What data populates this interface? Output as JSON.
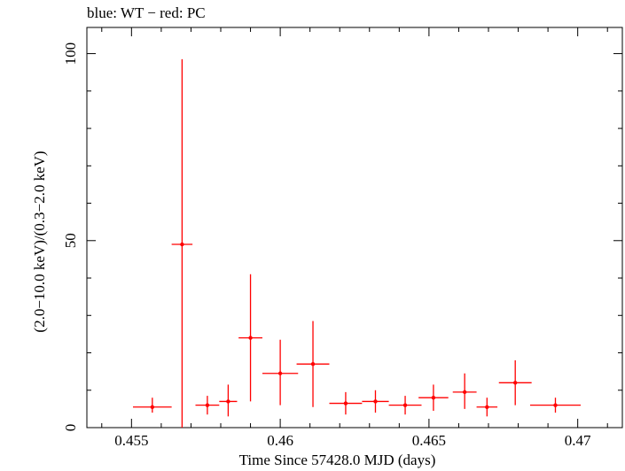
{
  "chart_data": {
    "type": "scatter",
    "title": "blue: WT − red: PC",
    "xlabel": "Time Since 57428.0 MJD (days)",
    "ylabel": "(2.0−10.0 keV)/(0.3−2.0 keV)",
    "xlim": [
      0.4535,
      0.4715
    ],
    "ylim": [
      0,
      107
    ],
    "xticks": [
      0.455,
      0.46,
      0.465,
      0.47
    ],
    "xtick_labels": [
      "0.455",
      "0.46",
      "0.465",
      "0.47"
    ],
    "yticks": [
      0,
      50,
      100
    ],
    "ytick_labels": [
      "0",
      "50",
      "100"
    ],
    "grid": false,
    "series": [
      {
        "color": "#ff0000",
        "points": [
          {
            "x": 0.4557,
            "xerr": 0.00065,
            "y": 5.5,
            "ylow": 4.0,
            "yhigh": 8.0
          },
          {
            "x": 0.4567,
            "xerr": 0.00035,
            "y": 49.0,
            "ylow": 0.0,
            "yhigh": 98.5
          },
          {
            "x": 0.45755,
            "xerr": 0.0004,
            "y": 6.0,
            "ylow": 3.5,
            "yhigh": 8.5
          },
          {
            "x": 0.45825,
            "xerr": 0.0003,
            "y": 7.0,
            "ylow": 3.0,
            "yhigh": 11.5
          },
          {
            "x": 0.459,
            "xerr": 0.0004,
            "y": 24.0,
            "ylow": 7.0,
            "yhigh": 41.0
          },
          {
            "x": 0.46,
            "xerr": 0.0006,
            "y": 14.5,
            "ylow": 6.0,
            "yhigh": 23.5
          },
          {
            "x": 0.4611,
            "xerr": 0.00055,
            "y": 17.0,
            "ylow": 5.5,
            "yhigh": 28.5
          },
          {
            "x": 0.4622,
            "xerr": 0.00055,
            "y": 6.5,
            "ylow": 3.5,
            "yhigh": 9.5
          },
          {
            "x": 0.4632,
            "xerr": 0.00045,
            "y": 7.0,
            "ylow": 4.0,
            "yhigh": 10.0
          },
          {
            "x": 0.4642,
            "xerr": 0.00055,
            "y": 6.0,
            "ylow": 3.5,
            "yhigh": 8.5
          },
          {
            "x": 0.46515,
            "xerr": 0.0005,
            "y": 8.0,
            "ylow": 4.5,
            "yhigh": 11.5
          },
          {
            "x": 0.4662,
            "xerr": 0.0004,
            "y": 9.5,
            "ylow": 5.0,
            "yhigh": 14.5
          },
          {
            "x": 0.46695,
            "xerr": 0.00035,
            "y": 5.5,
            "ylow": 3.0,
            "yhigh": 8.0
          },
          {
            "x": 0.4679,
            "xerr": 0.00055,
            "y": 12.0,
            "ylow": 6.0,
            "yhigh": 18.0
          },
          {
            "x": 0.46925,
            "xerr": 0.00085,
            "y": 6.0,
            "ylow": 4.0,
            "yhigh": 8.0
          }
        ]
      }
    ]
  }
}
